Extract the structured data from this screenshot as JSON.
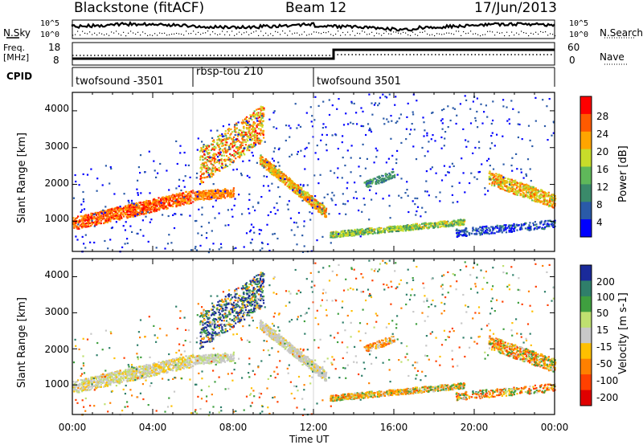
{
  "header": {
    "title": "Blackstone (fitACF)",
    "beam": "Beam 12",
    "date": "17/Jun/2013"
  },
  "noise_panel": {
    "left_label": "N.Sky",
    "right_label": "N.Search",
    "y_ticks": [
      "10^5",
      "10^0"
    ],
    "right_ticks": [
      "10^5",
      "10^0"
    ]
  },
  "freq_panel": {
    "left_label_top": "Freq.",
    "left_label_bottom": "[MHz]",
    "left_ticks": [
      "18",
      "8"
    ],
    "right_label": "Nave",
    "right_ticks": [
      "60",
      "0"
    ],
    "cpid_label": "CPID"
  },
  "programs": [
    {
      "name": "twofsound -3501",
      "start": 0,
      "end": 6
    },
    {
      "name": "rbsp-tou 210",
      "start": 6,
      "end": 12
    },
    {
      "name": "twofsound 3501",
      "start": 12,
      "end": 24
    }
  ],
  "chart_data": [
    {
      "type": "heatmap",
      "name": "Power",
      "ylabel": "Slant Range [km]",
      "ylim": [
        180,
        4500
      ],
      "y_ticks": [
        "4000",
        "3000",
        "2000",
        "1000"
      ],
      "colorbar": {
        "label": "Power [dB]",
        "ticks": [
          "28",
          "24",
          "20",
          "16",
          "12",
          "8",
          "4"
        ],
        "range": [
          0,
          30
        ],
        "colors": [
          "#ff0000",
          "#ff5a00",
          "#ffa500",
          "#c8dc2a",
          "#5fb85a",
          "#3a8a6a",
          "#2a5aa8",
          "#0000ff"
        ]
      },
      "features": [
        {
          "desc": "dawn band",
          "x": [
            0,
            6
          ],
          "range_km": [
            950,
            1650
          ],
          "power": 26
        },
        {
          "desc": "upper clusters",
          "x": [
            6,
            10
          ],
          "range_km": [
            2500,
            3800
          ],
          "power": 22
        },
        {
          "desc": "descending band",
          "x": [
            9.5,
            12.5
          ],
          "range_km": [
            2600,
            1200
          ],
          "power": 18
        },
        {
          "desc": "afternoon band",
          "x": [
            12.5,
            19.5
          ],
          "range_km": [
            650,
            1000
          ],
          "power": 14
        },
        {
          "desc": "evening band",
          "x": [
            21,
            24
          ],
          "range_km": [
            2200,
            1500
          ],
          "power": 20
        }
      ]
    },
    {
      "type": "heatmap",
      "name": "Velocity",
      "ylabel": "Slant Range [km]",
      "ylim": [
        180,
        4500
      ],
      "y_ticks": [
        "4000",
        "3000",
        "2000",
        "1000"
      ],
      "colorbar": {
        "label": "Velocity [m s-1]",
        "ticks": [
          "200",
          "100",
          "50",
          "15",
          "-15",
          "-50",
          "-100",
          "-200"
        ],
        "range": [
          -250,
          250
        ],
        "colors": [
          "#1a2a9a",
          "#2f7f6a",
          "#3f9f3f",
          "#bfe070",
          "#c8c8c8",
          "#ffc000",
          "#ff8000",
          "#ff4000",
          "#e00000"
        ]
      }
    }
  ],
  "x_axis": {
    "label": "Time UT",
    "ticks": [
      "00:00",
      "04:00",
      "08:00",
      "12:00",
      "16:00",
      "20:00",
      "00:00"
    ],
    "range": [
      0,
      24
    ]
  }
}
